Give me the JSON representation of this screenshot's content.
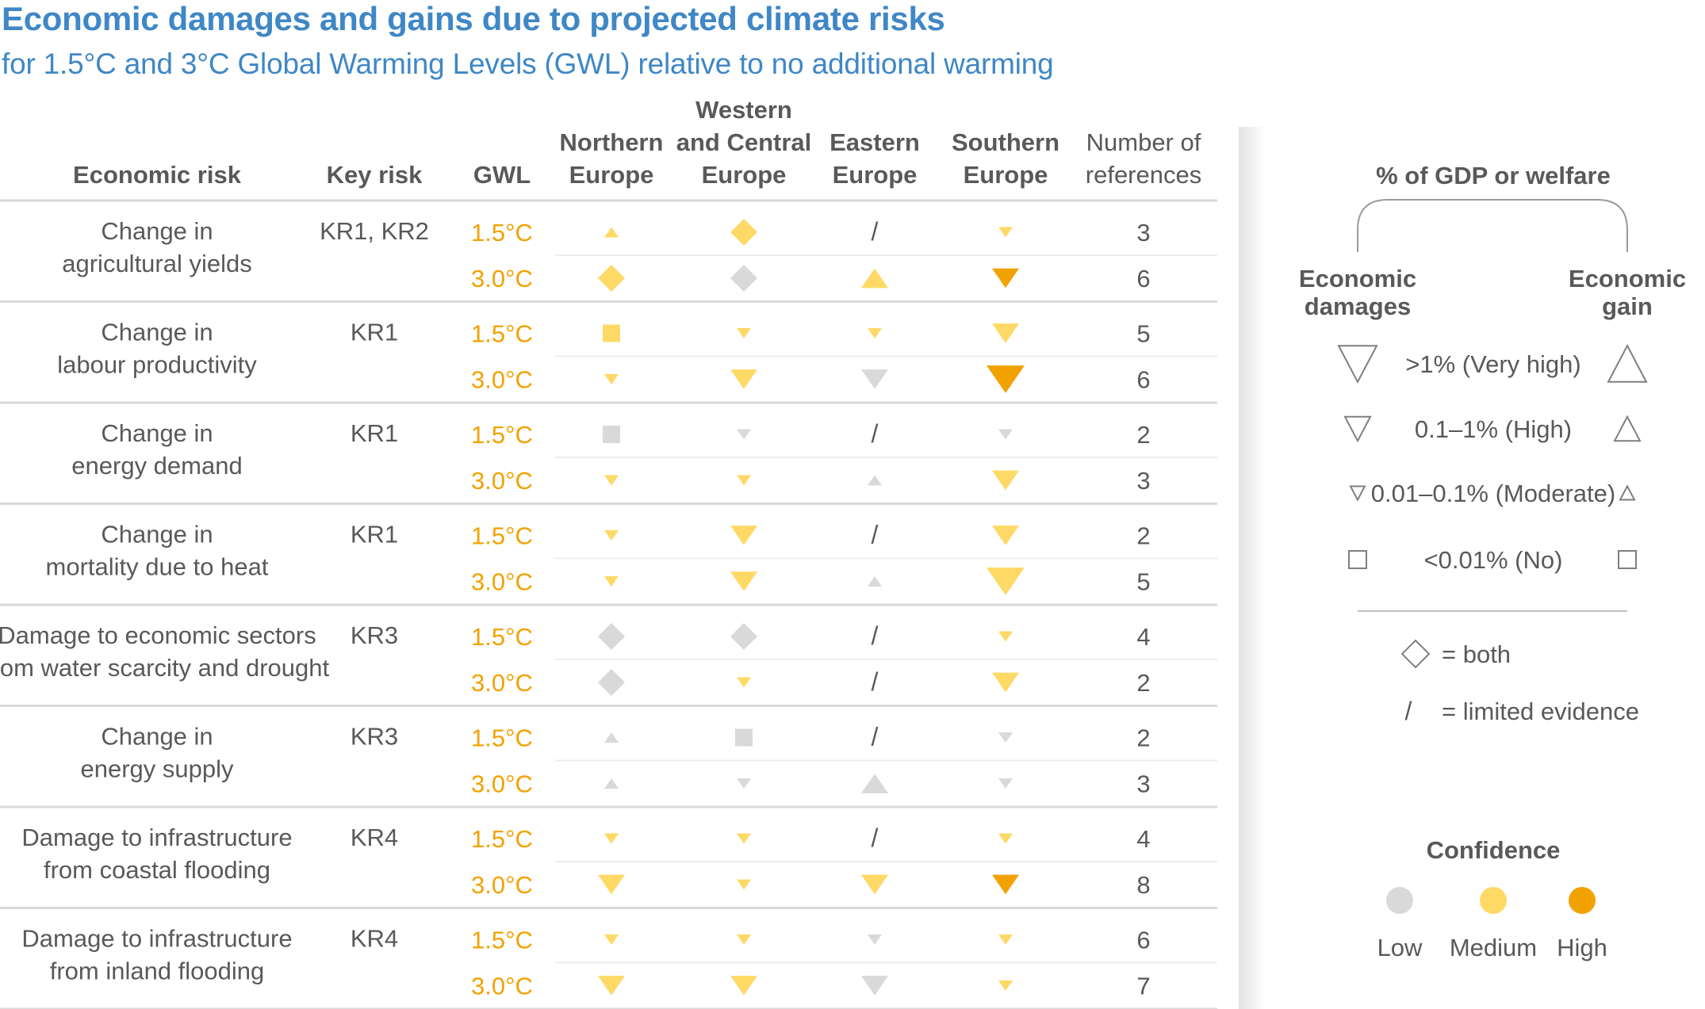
{
  "title": "Economic damages and gains due to projected climate risks",
  "subtitle": "for 1.5°C and 3°C Global Warming Levels (GWL) relative to no additional warming",
  "colors": {
    "gwl_text": "#f2a200",
    "low": "#d9d9d9",
    "medium": "#ffd966",
    "high": "#f2a200",
    "title": "#3f87c6",
    "text": "#595959",
    "rule": "#d9d9d9"
  },
  "chart_data": {
    "type": "table",
    "columns": {
      "risk": "Economic risk",
      "key": "Key risk",
      "gwl": "GWL",
      "regions": [
        [
          "Northern",
          "Europe"
        ],
        [
          "Western",
          "and Central",
          "Europe"
        ],
        [
          "Eastern",
          "Europe"
        ],
        [
          "Southern",
          "Europe"
        ]
      ],
      "refs": [
        "Number of",
        "references"
      ]
    },
    "symbol_legend": "shape: down=economic damage, up=economic gain, diamond=both, square=<0.01%, slash=limited evidence; size: 0=no, 1=moderate, 2=high, 3=very high; conf: low/medium/high",
    "rows": [
      {
        "risk": [
          "Change in",
          "agricultural yields"
        ],
        "key": "KR1, KR2",
        "entries": [
          {
            "gwl": "1.5°C",
            "cells": [
              {
                "s": "up",
                "z": 1,
                "c": "medium"
              },
              {
                "s": "diamond",
                "z": 2,
                "c": "medium"
              },
              {
                "s": "slash"
              },
              {
                "s": "down",
                "z": 1,
                "c": "medium"
              }
            ],
            "refs": "3"
          },
          {
            "gwl": "3.0°C",
            "cells": [
              {
                "s": "diamond",
                "z": 2,
                "c": "medium"
              },
              {
                "s": "diamond",
                "z": 2,
                "c": "low"
              },
              {
                "s": "up",
                "z": 2,
                "c": "medium"
              },
              {
                "s": "down",
                "z": 2,
                "c": "high"
              }
            ],
            "refs": "6"
          }
        ]
      },
      {
        "risk": [
          "Change in",
          "labour productivity"
        ],
        "key": "KR1",
        "entries": [
          {
            "gwl": "1.5°C",
            "cells": [
              {
                "s": "square",
                "z": 0,
                "c": "medium"
              },
              {
                "s": "down",
                "z": 1,
                "c": "medium"
              },
              {
                "s": "down",
                "z": 1,
                "c": "medium"
              },
              {
                "s": "down",
                "z": 2,
                "c": "medium"
              }
            ],
            "refs": "5"
          },
          {
            "gwl": "3.0°C",
            "cells": [
              {
                "s": "down",
                "z": 1,
                "c": "medium"
              },
              {
                "s": "down",
                "z": 2,
                "c": "medium"
              },
              {
                "s": "down",
                "z": 2,
                "c": "low"
              },
              {
                "s": "down",
                "z": 3,
                "c": "high"
              }
            ],
            "refs": "6"
          }
        ]
      },
      {
        "risk": [
          "Change in",
          "energy demand"
        ],
        "key": "KR1",
        "entries": [
          {
            "gwl": "1.5°C",
            "cells": [
              {
                "s": "square",
                "z": 0,
                "c": "low"
              },
              {
                "s": "down",
                "z": 1,
                "c": "low"
              },
              {
                "s": "slash"
              },
              {
                "s": "down",
                "z": 1,
                "c": "low"
              }
            ],
            "refs": "2"
          },
          {
            "gwl": "3.0°C",
            "cells": [
              {
                "s": "down",
                "z": 1,
                "c": "medium"
              },
              {
                "s": "down",
                "z": 1,
                "c": "medium"
              },
              {
                "s": "up",
                "z": 1,
                "c": "low"
              },
              {
                "s": "down",
                "z": 2,
                "c": "medium"
              }
            ],
            "refs": "3"
          }
        ]
      },
      {
        "risk": [
          "Change in",
          "mortality due to heat"
        ],
        "key": "KR1",
        "entries": [
          {
            "gwl": "1.5°C",
            "cells": [
              {
                "s": "down",
                "z": 1,
                "c": "medium"
              },
              {
                "s": "down",
                "z": 2,
                "c": "medium"
              },
              {
                "s": "slash"
              },
              {
                "s": "down",
                "z": 2,
                "c": "medium"
              }
            ],
            "refs": "2"
          },
          {
            "gwl": "3.0°C",
            "cells": [
              {
                "s": "down",
                "z": 1,
                "c": "medium"
              },
              {
                "s": "down",
                "z": 2,
                "c": "medium"
              },
              {
                "s": "up",
                "z": 1,
                "c": "low"
              },
              {
                "s": "down",
                "z": 3,
                "c": "medium"
              }
            ],
            "refs": "5"
          }
        ]
      },
      {
        "risk": [
          "Damage to economic sectors",
          "from water scarcity and drought"
        ],
        "key": "KR3",
        "entries": [
          {
            "gwl": "1.5°C",
            "cells": [
              {
                "s": "diamond",
                "z": 2,
                "c": "low"
              },
              {
                "s": "diamond",
                "z": 2,
                "c": "low"
              },
              {
                "s": "slash"
              },
              {
                "s": "down",
                "z": 1,
                "c": "medium"
              }
            ],
            "refs": "4"
          },
          {
            "gwl": "3.0°C",
            "cells": [
              {
                "s": "diamond",
                "z": 2,
                "c": "low"
              },
              {
                "s": "down",
                "z": 1,
                "c": "medium"
              },
              {
                "s": "slash"
              },
              {
                "s": "down",
                "z": 2,
                "c": "medium"
              }
            ],
            "refs": "2"
          }
        ]
      },
      {
        "risk": [
          "Change in",
          "energy supply"
        ],
        "key": "KR3",
        "entries": [
          {
            "gwl": "1.5°C",
            "cells": [
              {
                "s": "up",
                "z": 1,
                "c": "low"
              },
              {
                "s": "square",
                "z": 0,
                "c": "low"
              },
              {
                "s": "slash"
              },
              {
                "s": "down",
                "z": 1,
                "c": "low"
              }
            ],
            "refs": "2"
          },
          {
            "gwl": "3.0°C",
            "cells": [
              {
                "s": "up",
                "z": 1,
                "c": "low"
              },
              {
                "s": "down",
                "z": 1,
                "c": "low"
              },
              {
                "s": "up",
                "z": 2,
                "c": "low"
              },
              {
                "s": "down",
                "z": 1,
                "c": "low"
              }
            ],
            "refs": "3"
          }
        ]
      },
      {
        "risk": [
          "Damage to infrastructure",
          "from coastal flooding"
        ],
        "key": "KR4",
        "entries": [
          {
            "gwl": "1.5°C",
            "cells": [
              {
                "s": "down",
                "z": 1,
                "c": "medium"
              },
              {
                "s": "down",
                "z": 1,
                "c": "medium"
              },
              {
                "s": "slash"
              },
              {
                "s": "down",
                "z": 1,
                "c": "medium"
              }
            ],
            "refs": "4"
          },
          {
            "gwl": "3.0°C",
            "cells": [
              {
                "s": "down",
                "z": 2,
                "c": "medium"
              },
              {
                "s": "down",
                "z": 1,
                "c": "medium"
              },
              {
                "s": "down",
                "z": 2,
                "c": "medium"
              },
              {
                "s": "down",
                "z": 2,
                "c": "high"
              }
            ],
            "refs": "8"
          }
        ]
      },
      {
        "risk": [
          "Damage to infrastructure",
          "from inland flooding"
        ],
        "key": "KR4",
        "entries": [
          {
            "gwl": "1.5°C",
            "cells": [
              {
                "s": "down",
                "z": 1,
                "c": "medium"
              },
              {
                "s": "down",
                "z": 1,
                "c": "medium"
              },
              {
                "s": "down",
                "z": 1,
                "c": "low"
              },
              {
                "s": "down",
                "z": 1,
                "c": "medium"
              }
            ],
            "refs": "6"
          },
          {
            "gwl": "3.0°C",
            "cells": [
              {
                "s": "down",
                "z": 2,
                "c": "medium"
              },
              {
                "s": "down",
                "z": 2,
                "c": "medium"
              },
              {
                "s": "down",
                "z": 2,
                "c": "low"
              },
              {
                "s": "down",
                "z": 1,
                "c": "medium"
              }
            ],
            "refs": "7"
          }
        ]
      }
    ]
  },
  "legend": {
    "title": "% of GDP or welfare",
    "damages": [
      "Economic",
      "damages"
    ],
    "gain": [
      "Economic",
      "gain"
    ],
    "levels": [
      ">1% (Very high)",
      "0.1–1% (High)",
      "0.01–0.1% (Moderate)",
      "<0.01% (No)"
    ],
    "both": "= both",
    "limited": "= limited evidence",
    "confidence_title": "Confidence",
    "confidence": [
      "Low",
      "Medium",
      "High"
    ]
  }
}
